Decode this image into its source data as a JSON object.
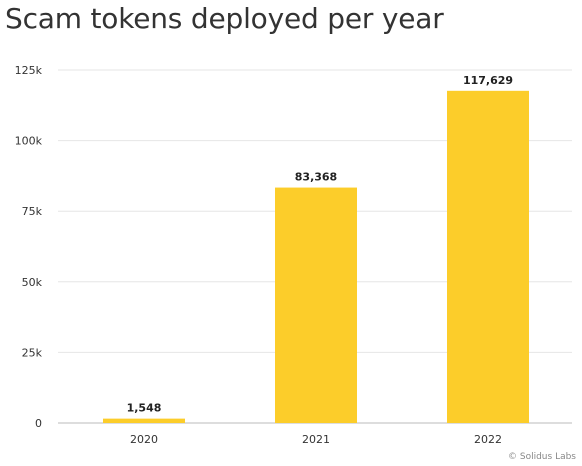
{
  "chart_data": {
    "type": "bar",
    "title": "Scam tokens deployed per year",
    "xlabel": "",
    "ylabel": "",
    "categories": [
      "2020",
      "2021",
      "2022"
    ],
    "values": [
      1548,
      83368,
      117629
    ],
    "value_labels": [
      "1,548",
      "83,368",
      "117,629"
    ],
    "ylim": [
      0,
      125000
    ],
    "yticks": [
      0,
      25000,
      50000,
      75000,
      100000,
      125000
    ],
    "ytick_labels": [
      "0",
      "25k",
      "50k",
      "75k",
      "100k",
      "125k"
    ],
    "grid": true,
    "bar_color": "#fccd2a"
  },
  "credit": "© Solidus Labs"
}
